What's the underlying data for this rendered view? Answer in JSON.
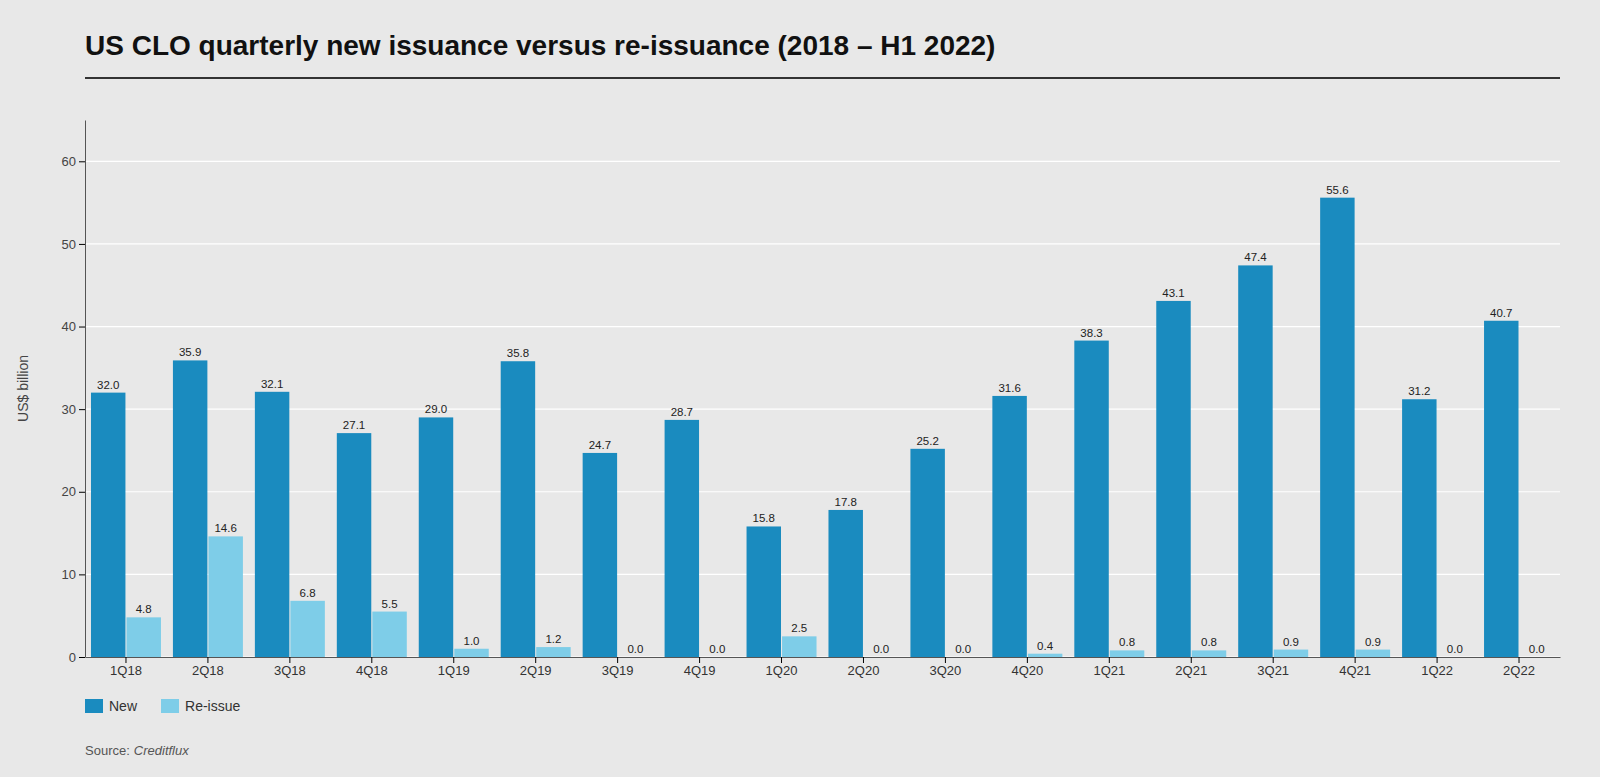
{
  "chart_data": {
    "type": "bar",
    "title": "US CLO quarterly new issuance versus re-issuance (2018 – H1 2022)",
    "ylabel": "US$ billion",
    "annotations": [
      "Source:",
      "Creditflux"
    ],
    "categories": [
      "1Q18",
      "2Q18",
      "3Q18",
      "4Q18",
      "1Q19",
      "2Q19",
      "3Q19",
      "4Q19",
      "1Q20",
      "2Q20",
      "3Q20",
      "4Q20",
      "1Q21",
      "2Q21",
      "3Q21",
      "4Q21",
      "1Q22",
      "2Q22"
    ],
    "series": [
      {
        "name": "New",
        "color": "#1a8bbf",
        "values": [
          32.0,
          35.9,
          32.1,
          27.1,
          29.0,
          35.8,
          24.7,
          28.7,
          15.8,
          17.8,
          25.2,
          31.6,
          38.3,
          43.1,
          47.4,
          55.6,
          31.2,
          40.7
        ],
        "value_labels": [
          "32.0",
          "35.9",
          "32.1",
          "27.1",
          "29.0",
          "35.8",
          "24.7",
          "28.7",
          "15.8",
          "17.8",
          "25.2",
          "31.6",
          "38.3",
          "43.1",
          "47.4",
          "55.6",
          "31.2",
          "40.7"
        ]
      },
      {
        "name": "Re-issue",
        "color": "#7ecde8",
        "values": [
          4.8,
          14.6,
          6.8,
          5.5,
          1.0,
          1.2,
          0.0,
          0.0,
          2.5,
          0.0,
          0.0,
          0.4,
          0.8,
          0.8,
          0.9,
          0.9,
          0.0,
          0.0
        ],
        "value_labels": [
          "4.8",
          "14.6",
          "6.8",
          "5.5",
          "1.0",
          "1.2",
          "0.0",
          "0.0",
          "2.5",
          "0.0",
          "0.0",
          "0.4",
          "0.8",
          "0.8",
          "0.9",
          "0.9",
          "0.0",
          "0.0"
        ]
      }
    ],
    "ylim": [
      0,
      65
    ],
    "yticks": [
      0,
      10,
      20,
      30,
      40,
      50,
      60
    ],
    "grid": true,
    "legend": "bottom",
    "data_labels": true
  }
}
